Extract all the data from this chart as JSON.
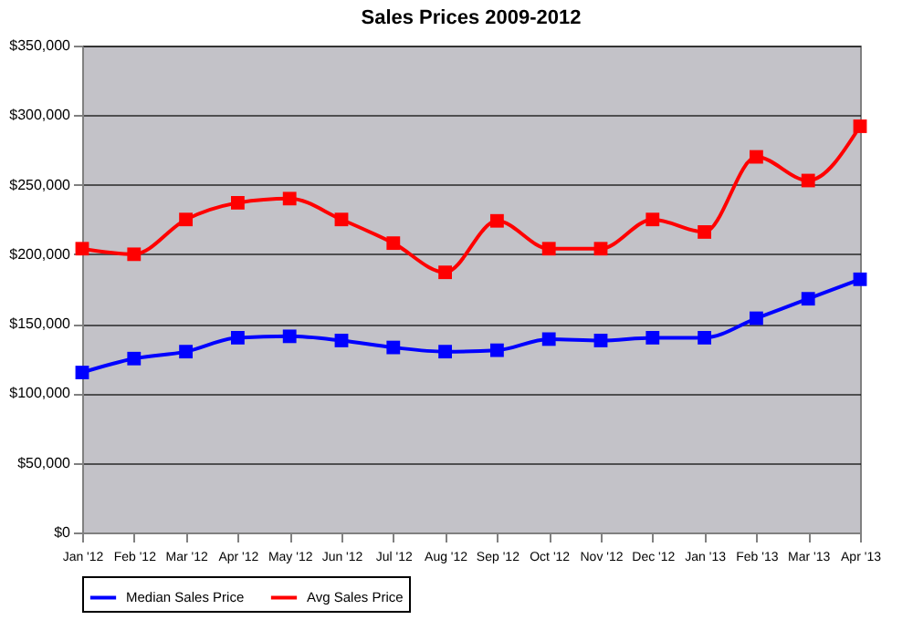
{
  "chart_data": {
    "type": "line",
    "title": "Sales Prices 2009-2012",
    "categories": [
      "Jan '12",
      "Feb '12",
      "Mar '12",
      "Apr '12",
      "May '12",
      "Jun '12",
      "Jul '12",
      "Aug '12",
      "Sep '12",
      "Oct '12",
      "Nov '12",
      "Dec '12",
      "Jan '13",
      "Feb '13",
      "Mar '13",
      "Apr '13"
    ],
    "series": [
      {
        "name": "Median Sales Price",
        "color": "#0000ff",
        "values": [
          115000,
          125000,
          130000,
          140000,
          141000,
          138000,
          133000,
          130000,
          131000,
          139000,
          138000,
          140000,
          140000,
          154000,
          168000,
          182000
        ]
      },
      {
        "name": "Avg Sales Price",
        "color": "#ff0000",
        "values": [
          204000,
          200000,
          225000,
          237000,
          240000,
          225000,
          208000,
          187000,
          224000,
          204000,
          204000,
          225000,
          216000,
          270000,
          253000,
          292000
        ]
      }
    ],
    "ylim": [
      0,
      350000
    ],
    "yticks": [
      {
        "value": 0,
        "label": "$0"
      },
      {
        "value": 50000,
        "label": "$50,000"
      },
      {
        "value": 100000,
        "label": "$100,000"
      },
      {
        "value": 150000,
        "label": "$150,000"
      },
      {
        "value": 200000,
        "label": "$200,000"
      },
      {
        "value": 250000,
        "label": "$250,000"
      },
      {
        "value": 300000,
        "label": "$300,000"
      },
      {
        "value": 350000,
        "label": "$350,000"
      }
    ],
    "grid": "y",
    "legend": "bottom",
    "marker": "square",
    "line_style": "solid"
  }
}
